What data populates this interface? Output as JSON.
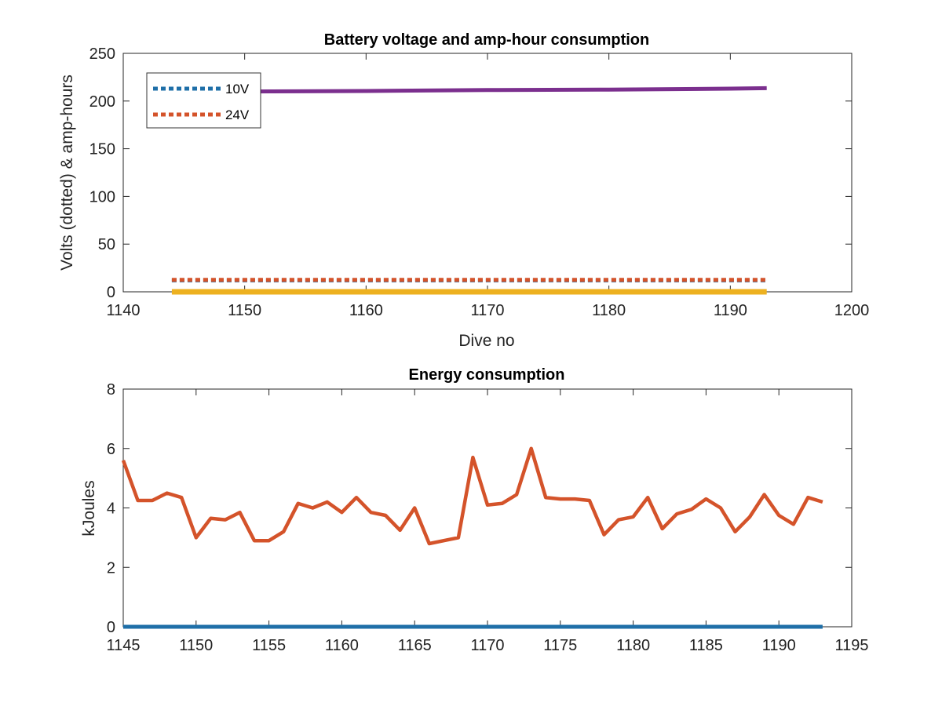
{
  "chart_data": [
    {
      "type": "line",
      "title": "Battery voltage and amp-hour consumption",
      "xlabel": "Dive no",
      "ylabel": "Volts (dotted) & amp-hours",
      "xlim": [
        1140,
        1200
      ],
      "ylim": [
        0,
        250
      ],
      "xticks": [
        "1140",
        "1150",
        "1160",
        "1170",
        "1180",
        "1190",
        "1200"
      ],
      "yticks": [
        "0",
        "50",
        "100",
        "150",
        "200",
        "250"
      ],
      "legend_position": "top-left",
      "series": [
        {
          "name": "10V",
          "style": "dotted",
          "color": "#1f6fa8",
          "x": [
            1144,
            1193
          ],
          "values": [
            12,
            12
          ]
        },
        {
          "name": "24V",
          "style": "dotted",
          "color": "#d4532a",
          "x": [
            1144,
            1193
          ],
          "values": [
            12.5,
            12.5
          ]
        },
        {
          "style": "solid",
          "color": "#7b2f8e",
          "x": [
            1144,
            1150,
            1160,
            1170,
            1180,
            1190,
            1193
          ],
          "values": [
            209,
            210,
            210.5,
            211.5,
            212,
            213,
            213.5
          ]
        },
        {
          "style": "solid",
          "color": "#edb120",
          "x": [
            1144,
            1193
          ],
          "values": [
            0,
            0
          ]
        }
      ]
    },
    {
      "type": "line",
      "title": "Energy consumption",
      "xlabel": "",
      "ylabel": "kJoules",
      "xlim": [
        1145,
        1195
      ],
      "ylim": [
        0,
        8
      ],
      "xticks": [
        "1145",
        "1150",
        "1155",
        "1160",
        "1165",
        "1170",
        "1175",
        "1180",
        "1185",
        "1190",
        "1195"
      ],
      "yticks": [
        "0",
        "2",
        "4",
        "6",
        "8"
      ],
      "series": [
        {
          "style": "solid",
          "color": "#d4532a",
          "x": [
            1145,
            1146,
            1147,
            1148,
            1149,
            1150,
            1151,
            1152,
            1153,
            1154,
            1155,
            1156,
            1157,
            1158,
            1159,
            1160,
            1161,
            1162,
            1163,
            1164,
            1165,
            1166,
            1167,
            1168,
            1169,
            1170,
            1171,
            1172,
            1173,
            1174,
            1175,
            1176,
            1177,
            1178,
            1179,
            1180,
            1181,
            1182,
            1183,
            1184,
            1185,
            1186,
            1187,
            1188,
            1189,
            1190,
            1191,
            1192,
            1193
          ],
          "values": [
            5.6,
            4.25,
            4.25,
            4.5,
            4.35,
            3.0,
            3.65,
            3.6,
            3.85,
            2.9,
            2.9,
            3.2,
            4.15,
            4.0,
            4.2,
            3.85,
            4.35,
            3.85,
            3.75,
            3.25,
            4.0,
            2.8,
            2.9,
            3.0,
            5.7,
            4.1,
            4.15,
            4.45,
            6.0,
            4.35,
            4.3,
            4.3,
            4.25,
            3.1,
            3.6,
            3.7,
            4.35,
            3.3,
            3.8,
            3.95,
            4.3,
            4.0,
            3.2,
            3.7,
            4.45,
            3.75,
            3.45,
            4.35,
            4.2
          ]
        },
        {
          "style": "solid",
          "color": "#1f6fa8",
          "x": [
            1145,
            1193
          ],
          "values": [
            0,
            0
          ]
        }
      ]
    }
  ]
}
